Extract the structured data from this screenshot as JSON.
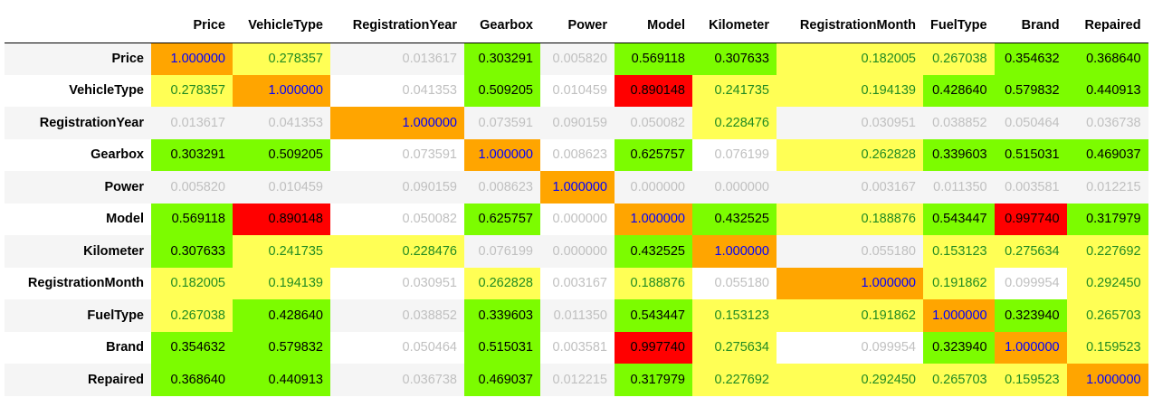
{
  "colors": {
    "diagonal_bg": "#ffa500",
    "diagonal_text": "#0000ff",
    "high_bg": "#ff0000",
    "mid_bg": "#7cfc00",
    "low_bg": "#ffff55",
    "low_text": "#228b22",
    "none_text": "#c0c0c0"
  },
  "columns": [
    "Price",
    "VehicleType",
    "RegistrationYear",
    "Gearbox",
    "Power",
    "Model",
    "Kilometer",
    "RegistrationMonth",
    "FuelType",
    "Brand",
    "Repaired"
  ],
  "rows": [
    {
      "label": "Price",
      "values": [
        "1.000000",
        "0.278357",
        "0.013617",
        "0.303291",
        "0.005820",
        "0.569118",
        "0.307633",
        "0.182005",
        "0.267038",
        "0.354632",
        "0.368640"
      ],
      "levels": [
        "diag",
        "yellow",
        "none",
        "green",
        "none",
        "green",
        "green",
        "yellow",
        "yellow",
        "green",
        "green"
      ]
    },
    {
      "label": "VehicleType",
      "values": [
        "0.278357",
        "1.000000",
        "0.041353",
        "0.509205",
        "0.010459",
        "0.890148",
        "0.241735",
        "0.194139",
        "0.428640",
        "0.579832",
        "0.440913"
      ],
      "levels": [
        "yellow",
        "diag",
        "none",
        "green",
        "none",
        "red",
        "yellow",
        "yellow",
        "green",
        "green",
        "green"
      ]
    },
    {
      "label": "RegistrationYear",
      "values": [
        "0.013617",
        "0.041353",
        "1.000000",
        "0.073591",
        "0.090159",
        "0.050082",
        "0.228476",
        "0.030951",
        "0.038852",
        "0.050464",
        "0.036738"
      ],
      "levels": [
        "none",
        "none",
        "diag",
        "none",
        "none",
        "none",
        "yellow",
        "none",
        "none",
        "none",
        "none"
      ]
    },
    {
      "label": "Gearbox",
      "values": [
        "0.303291",
        "0.509205",
        "0.073591",
        "1.000000",
        "0.008623",
        "0.625757",
        "0.076199",
        "0.262828",
        "0.339603",
        "0.515031",
        "0.469037"
      ],
      "levels": [
        "green",
        "green",
        "none",
        "diag",
        "none",
        "green",
        "none",
        "yellow",
        "green",
        "green",
        "green"
      ]
    },
    {
      "label": "Power",
      "values": [
        "0.005820",
        "0.010459",
        "0.090159",
        "0.008623",
        "1.000000",
        "0.000000",
        "0.000000",
        "0.003167",
        "0.011350",
        "0.003581",
        "0.012215"
      ],
      "levels": [
        "none",
        "none",
        "none",
        "none",
        "diag",
        "none",
        "none",
        "none",
        "none",
        "none",
        "none"
      ]
    },
    {
      "label": "Model",
      "values": [
        "0.569118",
        "0.890148",
        "0.050082",
        "0.625757",
        "0.000000",
        "1.000000",
        "0.432525",
        "0.188876",
        "0.543447",
        "0.997740",
        "0.317979"
      ],
      "levels": [
        "green",
        "red",
        "none",
        "green",
        "none",
        "diag",
        "green",
        "yellow",
        "green",
        "red",
        "green"
      ]
    },
    {
      "label": "Kilometer",
      "values": [
        "0.307633",
        "0.241735",
        "0.228476",
        "0.076199",
        "0.000000",
        "0.432525",
        "1.000000",
        "0.055180",
        "0.153123",
        "0.275634",
        "0.227692"
      ],
      "levels": [
        "green",
        "yellow",
        "yellow",
        "none",
        "none",
        "green",
        "diag",
        "none",
        "yellow",
        "yellow",
        "yellow"
      ]
    },
    {
      "label": "RegistrationMonth",
      "values": [
        "0.182005",
        "0.194139",
        "0.030951",
        "0.262828",
        "0.003167",
        "0.188876",
        "0.055180",
        "1.000000",
        "0.191862",
        "0.099954",
        "0.292450"
      ],
      "levels": [
        "yellow",
        "yellow",
        "none",
        "yellow",
        "none",
        "yellow",
        "none",
        "diag",
        "yellow",
        "none",
        "yellow"
      ]
    },
    {
      "label": "FuelType",
      "values": [
        "0.267038",
        "0.428640",
        "0.038852",
        "0.339603",
        "0.011350",
        "0.543447",
        "0.153123",
        "0.191862",
        "1.000000",
        "0.323940",
        "0.265703"
      ],
      "levels": [
        "yellow",
        "green",
        "none",
        "green",
        "none",
        "green",
        "yellow",
        "yellow",
        "diag",
        "green",
        "yellow"
      ]
    },
    {
      "label": "Brand",
      "values": [
        "0.354632",
        "0.579832",
        "0.050464",
        "0.515031",
        "0.003581",
        "0.997740",
        "0.275634",
        "0.099954",
        "0.323940",
        "1.000000",
        "0.159523"
      ],
      "levels": [
        "green",
        "green",
        "none",
        "green",
        "none",
        "red",
        "yellow",
        "none",
        "green",
        "diag",
        "yellow"
      ]
    },
    {
      "label": "Repaired",
      "values": [
        "0.368640",
        "0.440913",
        "0.036738",
        "0.469037",
        "0.012215",
        "0.317979",
        "0.227692",
        "0.292450",
        "0.265703",
        "0.159523",
        "1.000000"
      ],
      "levels": [
        "green",
        "green",
        "none",
        "green",
        "none",
        "green",
        "yellow",
        "yellow",
        "yellow",
        "yellow",
        "diag"
      ]
    }
  ]
}
